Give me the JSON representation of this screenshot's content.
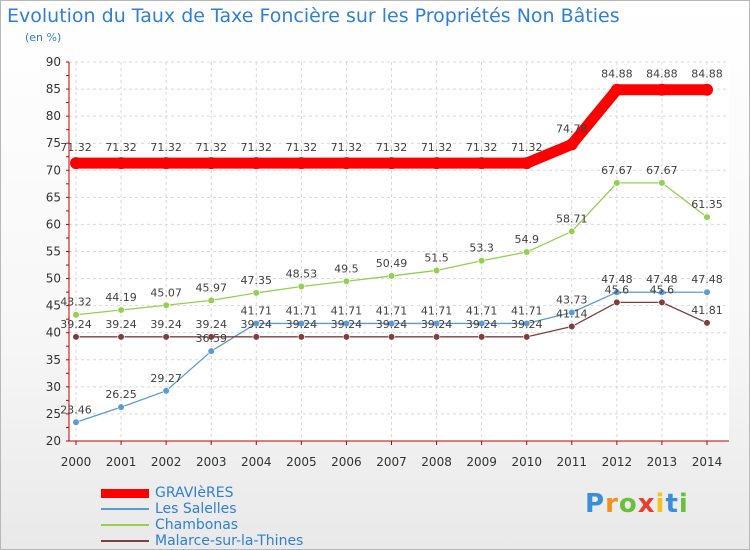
{
  "chart_data": {
    "type": "line",
    "title": "Evolution du Taux de Taxe Foncière sur les Propriétés Non Bâties",
    "subtitle": "(en %)",
    "xlabel": "",
    "ylabel": "(en %)",
    "ylim": [
      20,
      90
    ],
    "yticks": [
      20,
      25,
      30,
      35,
      40,
      45,
      50,
      55,
      60,
      65,
      70,
      75,
      80,
      85,
      90
    ],
    "categories": [
      "2000",
      "2001",
      "2002",
      "2003",
      "2004",
      "2005",
      "2006",
      "2007",
      "2008",
      "2009",
      "2010",
      "2011",
      "2012",
      "2013",
      "2014"
    ],
    "grid": true,
    "legend_position": "bottom-left",
    "series": [
      {
        "name": "GRAVIèRES",
        "color": "#ff0000",
        "values": [
          71.32,
          71.32,
          71.32,
          71.32,
          71.32,
          71.32,
          71.32,
          71.32,
          71.32,
          71.32,
          71.32,
          74.78,
          84.88,
          84.88,
          84.88
        ],
        "labels": [
          "71.32",
          "71.32",
          "71.32",
          "71.32",
          "71.32",
          "71.32",
          "71.32",
          "71.32",
          "71.32",
          "71.32",
          "71.32",
          "74.78",
          "84.88",
          "84.88",
          "84.88"
        ]
      },
      {
        "name": "Les Salelles",
        "color": "#5b9bd5",
        "values": [
          23.46,
          26.25,
          29.27,
          36.59,
          41.71,
          41.71,
          41.71,
          41.71,
          41.71,
          41.71,
          41.71,
          43.73,
          47.48,
          47.48,
          47.48
        ],
        "labels": [
          "23.46",
          "26.25",
          "29.27",
          "36.59",
          "41.71",
          "41.71",
          "41.71",
          "41.71",
          "41.71",
          "41.71",
          "41.71",
          "43.73",
          "47.48",
          "47.48",
          "47.48"
        ]
      },
      {
        "name": "Chambonas",
        "color": "#92d050",
        "values": [
          43.32,
          44.19,
          45.07,
          45.97,
          47.35,
          48.53,
          49.5,
          50.49,
          51.5,
          53.3,
          54.9,
          58.71,
          67.67,
          67.67,
          61.35
        ],
        "labels": [
          "43.32",
          "44.19",
          "45.07",
          "45.97",
          "47.35",
          "48.53",
          "49.5",
          "50.49",
          "51.5",
          "53.3",
          "54.9",
          "58.71",
          "67.67",
          "67.67",
          "61.35"
        ]
      },
      {
        "name": "Malarce-sur-la-Thines",
        "color": "#7f3f3f",
        "values": [
          39.24,
          39.24,
          39.24,
          39.24,
          39.24,
          39.24,
          39.24,
          39.24,
          39.24,
          39.24,
          39.24,
          41.14,
          45.6,
          45.6,
          41.81
        ],
        "labels": [
          "39.24",
          "39.24",
          "39.24",
          "39.24",
          "39.24",
          "39.24",
          "39.24",
          "39.24",
          "39.24",
          "39.24",
          "39.24",
          "41.14",
          "45.6",
          "45.6",
          "41.81"
        ]
      }
    ]
  },
  "brand": {
    "letters": [
      "P",
      "r",
      "o",
      "x",
      "i",
      "t",
      "i"
    ],
    "colors": [
      "#3c8ed8",
      "#f0921e",
      "#6cbf3a",
      "#e8402e",
      "#f0c51e",
      "#3c8ed8",
      "#6cbf3a"
    ]
  }
}
